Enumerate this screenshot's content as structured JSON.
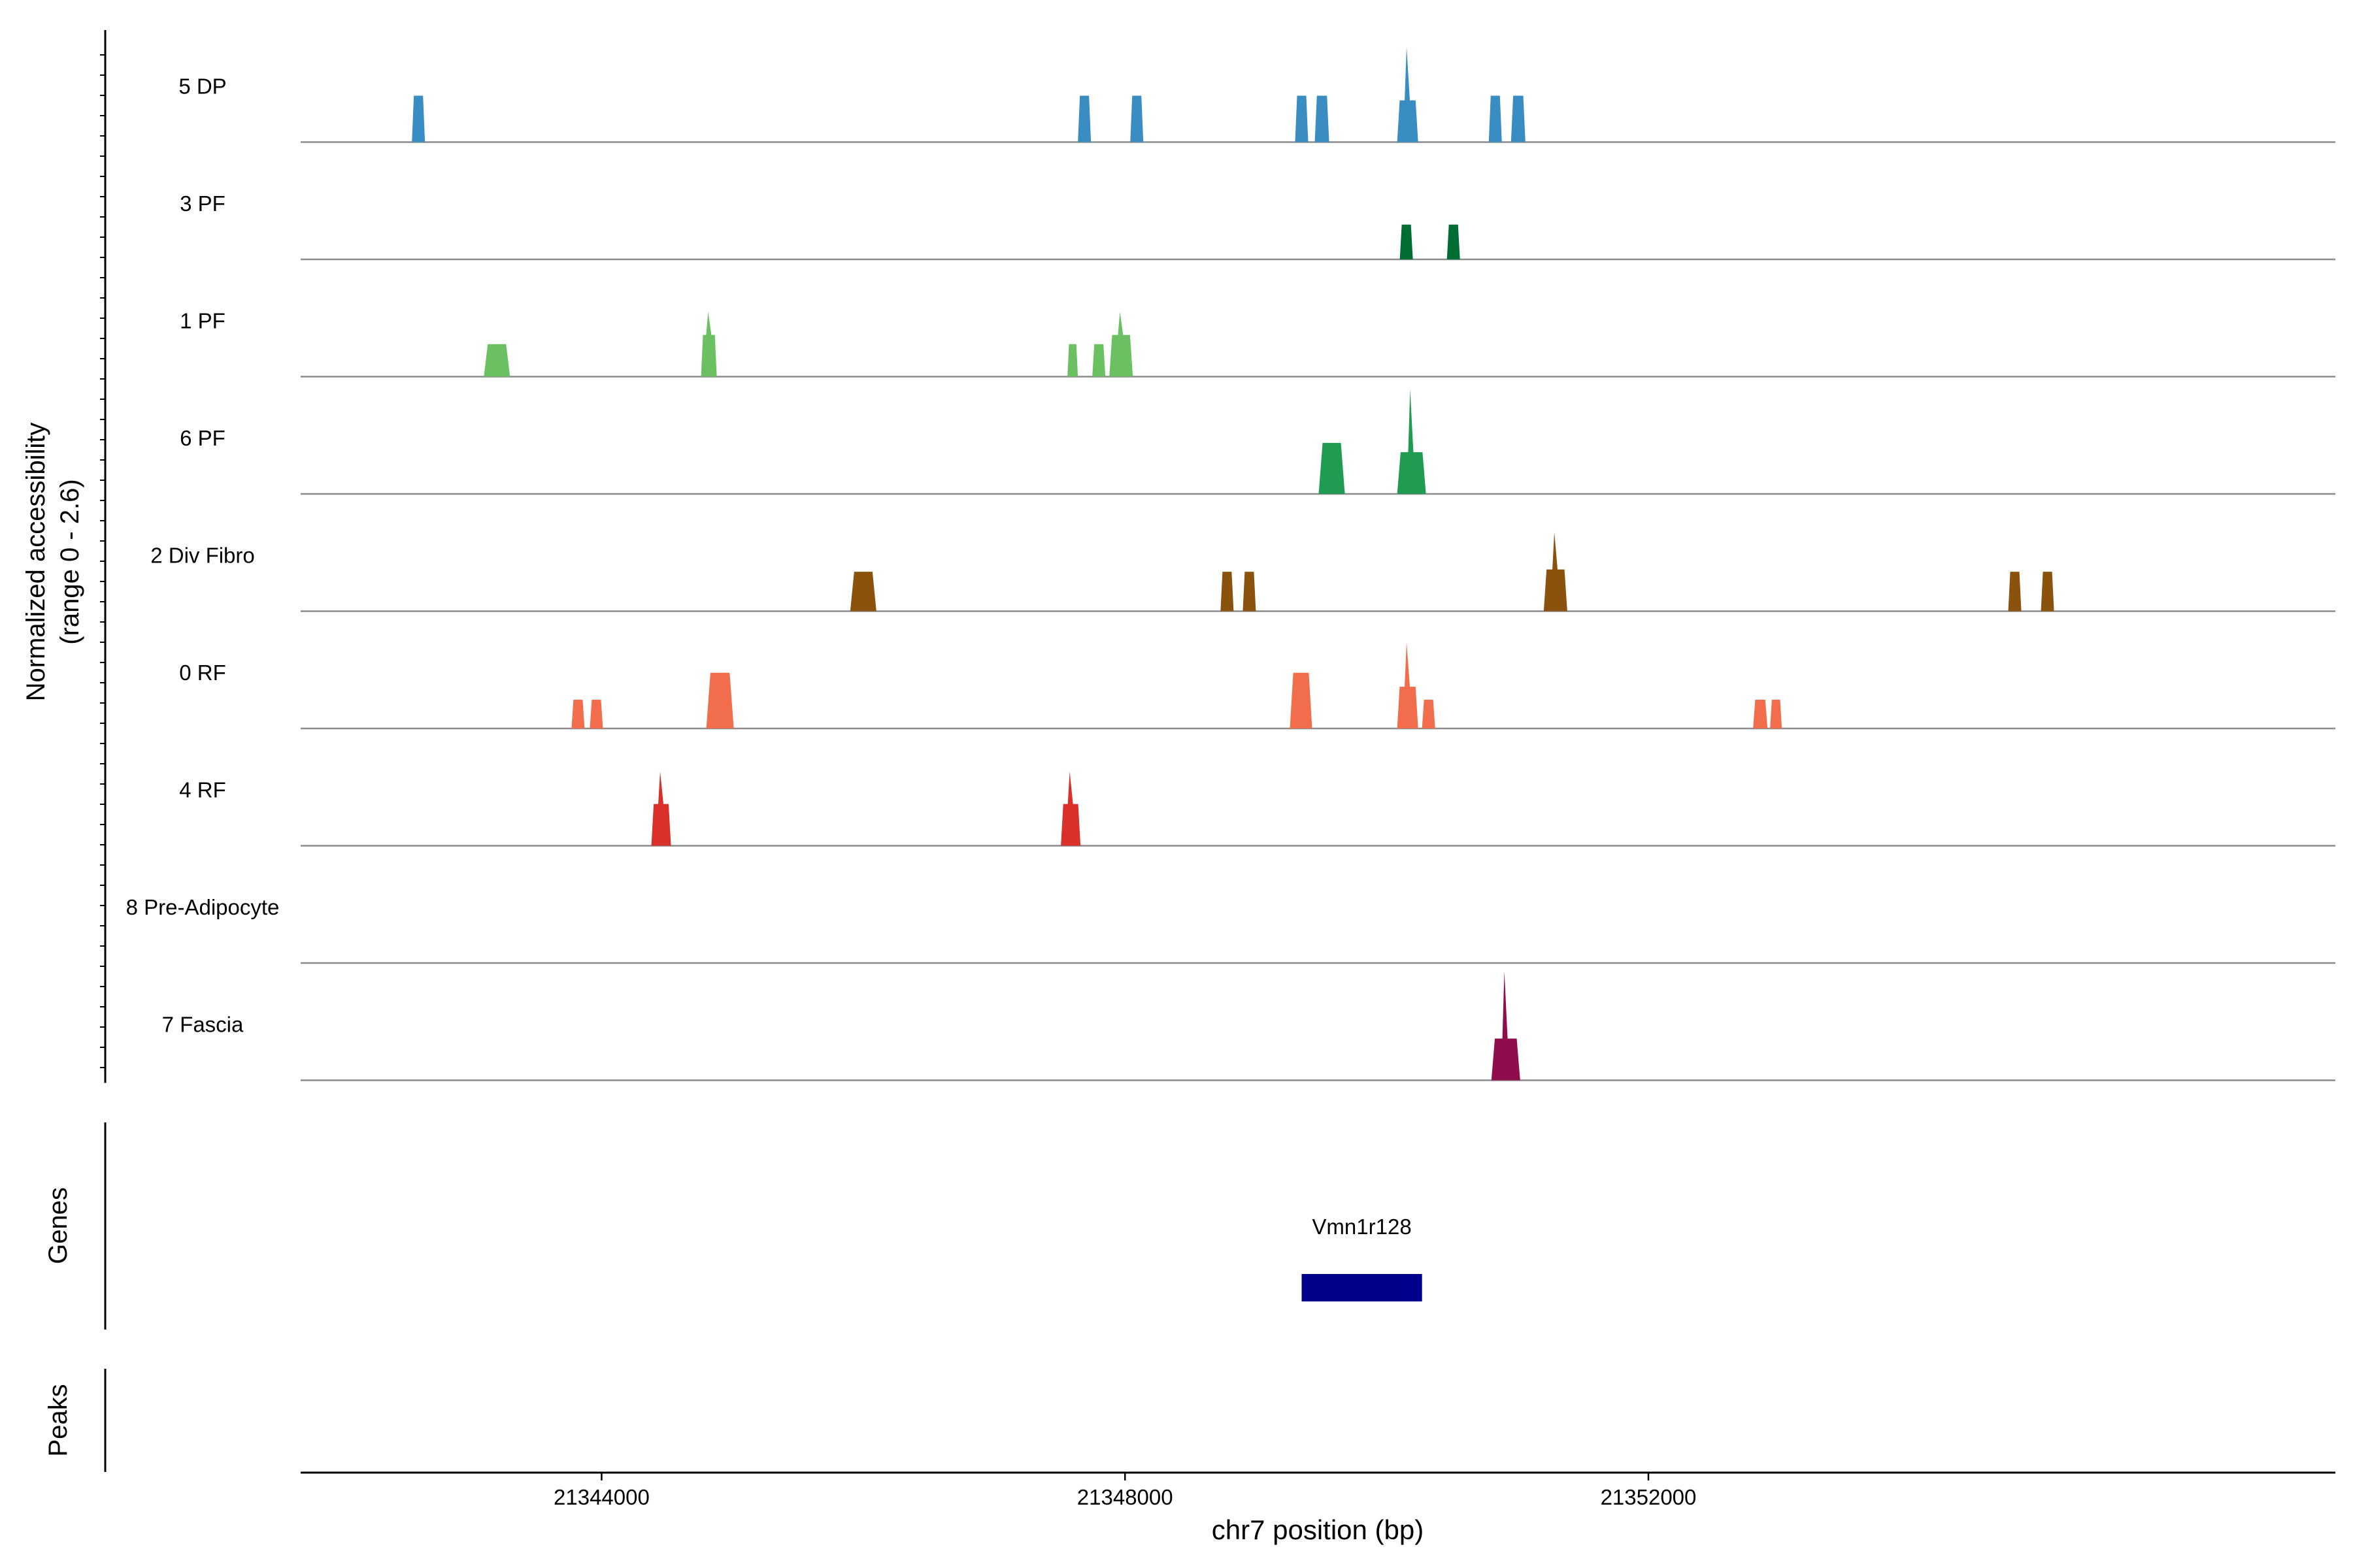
{
  "chart_data": {
    "type": "area",
    "y_axis_title": "Normalized accessibility",
    "y_axis_subtitle": "(range 0 - 2.6)",
    "y_range": [
      0,
      2.6
    ],
    "x_axis_title": "chr7 position (bp)",
    "x_range": [
      21341700,
      21357250
    ],
    "x_ticks": [
      {
        "value": 21344000,
        "label": "21344000"
      },
      {
        "value": 21348000,
        "label": "21348000"
      },
      {
        "value": 21352000,
        "label": "21352000"
      }
    ],
    "genes_label": "Genes",
    "peaks_label": "Peaks",
    "tracks": [
      {
        "name": "5 DP",
        "color": "#3a8dc3",
        "peaks": [
          {
            "start": 21342550,
            "end": 21342650,
            "height": 1.0
          },
          {
            "start": 21347640,
            "end": 21347740,
            "height": 1.0
          },
          {
            "start": 21348040,
            "end": 21348140,
            "height": 1.0
          },
          {
            "start": 21349300,
            "end": 21349400,
            "height": 1.0
          },
          {
            "start": 21349450,
            "end": 21349560,
            "height": 1.0
          },
          {
            "start": 21350080,
            "end": 21350240,
            "height": 2.05
          },
          {
            "start": 21350780,
            "end": 21350880,
            "height": 1.0
          },
          {
            "start": 21350950,
            "end": 21351060,
            "height": 1.0
          }
        ]
      },
      {
        "name": "3 PF",
        "color": "#006d35",
        "peaks": [
          {
            "start": 21350100,
            "end": 21350200,
            "height": 0.75
          },
          {
            "start": 21350460,
            "end": 21350560,
            "height": 0.75
          }
        ]
      },
      {
        "name": "1 PF",
        "color": "#6bc061",
        "peaks": [
          {
            "start": 21343100,
            "end": 21343300,
            "height": 0.7
          },
          {
            "start": 21344760,
            "end": 21344880,
            "height": 1.4
          },
          {
            "start": 21347560,
            "end": 21347640,
            "height": 0.7
          },
          {
            "start": 21347750,
            "end": 21347850,
            "height": 0.7
          },
          {
            "start": 21347880,
            "end": 21348060,
            "height": 1.4
          }
        ]
      },
      {
        "name": "6 PF",
        "color": "#209b52",
        "peaks": [
          {
            "start": 21349480,
            "end": 21349680,
            "height": 1.1
          },
          {
            "start": 21350080,
            "end": 21350300,
            "height": 2.25
          }
        ]
      },
      {
        "name": "2 Div Fibro",
        "color": "#8a520d",
        "peaks": [
          {
            "start": 21345900,
            "end": 21346100,
            "height": 0.85
          },
          {
            "start": 21348730,
            "end": 21348830,
            "height": 0.85
          },
          {
            "start": 21348900,
            "end": 21349000,
            "height": 0.85
          },
          {
            "start": 21351200,
            "end": 21351380,
            "height": 1.7
          },
          {
            "start": 21354750,
            "end": 21354850,
            "height": 0.85
          },
          {
            "start": 21355000,
            "end": 21355100,
            "height": 0.85
          }
        ]
      },
      {
        "name": "0 RF",
        "color": "#f26d4b",
        "peaks": [
          {
            "start": 21343770,
            "end": 21343870,
            "height": 0.62
          },
          {
            "start": 21343910,
            "end": 21344010,
            "height": 0.62
          },
          {
            "start": 21344800,
            "end": 21345010,
            "height": 1.2
          },
          {
            "start": 21349260,
            "end": 21349430,
            "height": 1.2
          },
          {
            "start": 21350080,
            "end": 21350240,
            "height": 1.85
          },
          {
            "start": 21350270,
            "end": 21350370,
            "height": 0.62
          },
          {
            "start": 21352800,
            "end": 21352910,
            "height": 0.62
          },
          {
            "start": 21352930,
            "end": 21353020,
            "height": 0.62
          }
        ]
      },
      {
        "name": "4 RF",
        "color": "#d93129",
        "peaks": [
          {
            "start": 21344380,
            "end": 21344530,
            "height": 1.6
          },
          {
            "start": 21347510,
            "end": 21347660,
            "height": 1.6
          }
        ]
      },
      {
        "name": "8 Pre-Adipocyte",
        "color": "#bbbbbb",
        "peaks": []
      },
      {
        "name": "7 Fascia",
        "color": "#8f0d4d",
        "peaks": [
          {
            "start": 21350800,
            "end": 21351020,
            "height": 2.35
          }
        ]
      }
    ],
    "genes": [
      {
        "name": "Vmn1r128",
        "start": 21349350,
        "end": 21350270,
        "color": "#00008b"
      }
    ]
  }
}
